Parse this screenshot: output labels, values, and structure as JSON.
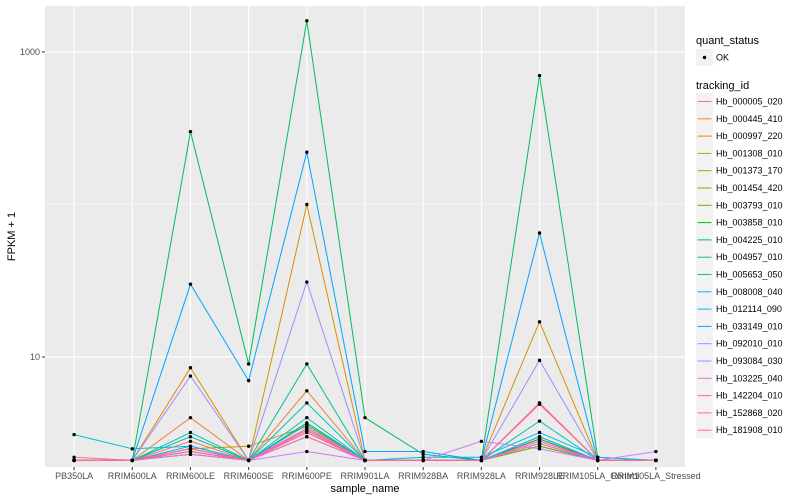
{
  "chart_data": {
    "type": "line",
    "xlabel": "sample_name",
    "ylabel": "FPKM + 1",
    "y_scale": "log10",
    "ylim": [
      1.9,
      2000
    ],
    "y_ticks": [
      {
        "value": 10,
        "label": "10"
      },
      {
        "value": 1000,
        "label": "1000"
      }
    ],
    "grid": true,
    "panel_background": "#ebebeb",
    "grid_color": "#ffffff",
    "categories": [
      "PB350LA",
      "RRIM600LA",
      "RRIM600LE",
      "RRIM600SE",
      "RRIM600PE",
      "RRIM901LA",
      "RRIM928BA",
      "RRIM928LA",
      "RRIM928LE",
      "RRIM105LA_Control",
      "RRIM105LA_Stressed"
    ],
    "point_color": "#000000",
    "legend_position": "right",
    "legend_quant": {
      "title": "quant_status",
      "entries": [
        "OK"
      ]
    },
    "legend_series_title": "tracking_id",
    "series": [
      {
        "name": "Hb_000005_020",
        "color": "#F8766D",
        "values": [
          2.2,
          2.1,
          2.8,
          2.1,
          3.2,
          2.1,
          2.1,
          2.1,
          2.9,
          2.1,
          2.1
        ]
      },
      {
        "name": "Hb_000445_410",
        "color": "#EC8239",
        "values": [
          2.1,
          2.1,
          4.0,
          2.1,
          6.0,
          2.1,
          2.1,
          2.1,
          3.0,
          2.1,
          2.1
        ]
      },
      {
        "name": "Hb_000997_220",
        "color": "#DB8E00",
        "values": [
          2.1,
          2.1,
          8.5,
          2.1,
          100,
          2.1,
          2.1,
          2.1,
          17,
          2.1,
          2.1
        ]
      },
      {
        "name": "Hb_001308_010",
        "color": "#C79800",
        "values": [
          2.1,
          2.1,
          2.5,
          2.6,
          3.5,
          2.1,
          2.1,
          2.1,
          2.8,
          2.1,
          2.1
        ]
      },
      {
        "name": "Hb_001373_170",
        "color": "#AEA200",
        "values": [
          2.1,
          2.1,
          2.4,
          2.1,
          3.4,
          2.1,
          2.1,
          2.1,
          2.7,
          2.1,
          2.1
        ]
      },
      {
        "name": "Hb_001454_420",
        "color": "#8FAA00",
        "values": [
          2.1,
          2.1,
          2.3,
          2.1,
          3.3,
          2.1,
          2.1,
          2.1,
          2.6,
          2.1,
          2.1
        ]
      },
      {
        "name": "Hb_003793_010",
        "color": "#64B200",
        "values": [
          2.1,
          2.1,
          2.3,
          2.1,
          3.0,
          2.1,
          2.1,
          2.1,
          2.6,
          2.1,
          2.1
        ]
      },
      {
        "name": "Hb_003858_010",
        "color": "#00B81B",
        "values": [
          2.1,
          2.1,
          2.5,
          2.1,
          3.7,
          2.1,
          2.1,
          2.1,
          2.9,
          2.1,
          2.1
        ]
      },
      {
        "name": "Hb_004225_010",
        "color": "#00BD5C",
        "values": [
          2.1,
          2.1,
          300,
          9.0,
          1600,
          4.0,
          2.3,
          2.1,
          700,
          2.2,
          2.1
        ]
      },
      {
        "name": "Hb_004957_010",
        "color": "#00C08E",
        "values": [
          2.1,
          2.1,
          3.0,
          2.1,
          9.0,
          2.1,
          2.1,
          2.1,
          5.0,
          2.1,
          2.1
        ]
      },
      {
        "name": "Hb_005653_050",
        "color": "#00C1B7",
        "values": [
          2.1,
          2.1,
          3.2,
          2.1,
          5.0,
          2.1,
          2.1,
          2.1,
          3.8,
          2.1,
          2.1
        ]
      },
      {
        "name": "Hb_008008_040",
        "color": "#00BDDC",
        "values": [
          3.1,
          2.5,
          2.6,
          2.1,
          4.0,
          2.1,
          2.2,
          2.2,
          3.2,
          2.2,
          2.1
        ]
      },
      {
        "name": "Hb_012114_090",
        "color": "#00B5F9",
        "values": [
          2.1,
          2.1,
          2.6,
          2.1,
          3.6,
          2.1,
          2.1,
          2.1,
          3.0,
          2.1,
          2.1
        ]
      },
      {
        "name": "Hb_033149_010",
        "color": "#00A5FF",
        "values": [
          2.1,
          2.1,
          30,
          7.0,
          220,
          2.4,
          2.4,
          2.1,
          65,
          2.1,
          2.1
        ]
      },
      {
        "name": "Hb_092010_010",
        "color": "#9F8CFF",
        "values": [
          2.1,
          2.1,
          7.5,
          2.1,
          31,
          2.1,
          2.1,
          2.1,
          9.5,
          2.1,
          2.1
        ]
      },
      {
        "name": "Hb_093084_030",
        "color": "#CF78FF",
        "values": [
          2.1,
          2.1,
          2.3,
          2.1,
          2.4,
          2.1,
          2.1,
          2.8,
          2.5,
          2.1,
          2.4
        ]
      },
      {
        "name": "Hb_103225_040",
        "color": "#EE69E8",
        "values": [
          2.1,
          2.1,
          2.4,
          2.1,
          3.4,
          2.1,
          2.1,
          2.1,
          2.8,
          2.1,
          2.1
        ]
      },
      {
        "name": "Hb_142204_010",
        "color": "#FD61CE",
        "values": [
          2.1,
          2.1,
          2.5,
          2.1,
          3.0,
          2.1,
          2.1,
          2.1,
          2.7,
          2.1,
          2.1
        ]
      },
      {
        "name": "Hb_152868_020",
        "color": "#FF62AC",
        "values": [
          2.1,
          2.1,
          2.4,
          2.1,
          3.2,
          2.1,
          2.1,
          2.1,
          4.9,
          2.1,
          2.1
        ]
      },
      {
        "name": "Hb_181908_010",
        "color": "#FF6C91",
        "values": [
          2.1,
          2.1,
          2.5,
          2.1,
          3.3,
          2.1,
          2.1,
          2.1,
          5.0,
          2.1,
          2.1
        ]
      }
    ]
  }
}
